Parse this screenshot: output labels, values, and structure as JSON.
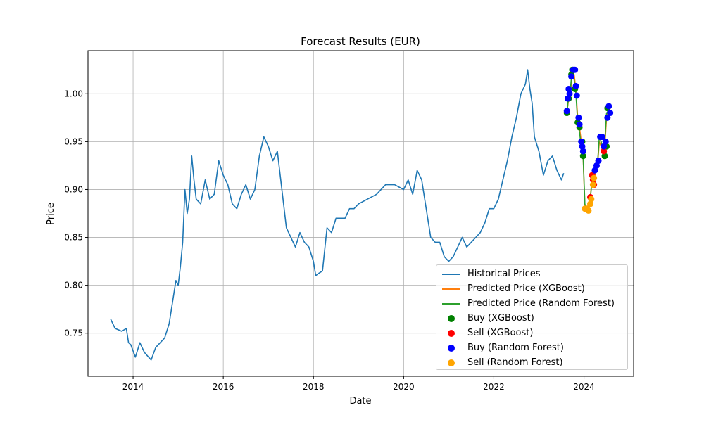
{
  "chart_data": {
    "type": "line",
    "title": "Forecast Results (EUR)",
    "xlabel": "Date",
    "ylabel": "Price",
    "xlim": [
      2013.0,
      2025.1
    ],
    "ylim": [
      0.705,
      1.045
    ],
    "x_ticks": [
      2014,
      2016,
      2018,
      2020,
      2022,
      2024
    ],
    "x_tick_labels": [
      "2014",
      "2016",
      "2018",
      "2020",
      "2022",
      "2024"
    ],
    "y_ticks": [
      0.75,
      0.8,
      0.85,
      0.9,
      0.95,
      1.0
    ],
    "y_tick_labels": [
      "0.75",
      "0.80",
      "0.85",
      "0.90",
      "0.95",
      "1.00"
    ],
    "grid": true,
    "legend_position": "lower-right",
    "series": [
      {
        "name": "Historical Prices",
        "kind": "line",
        "color": "#1f77b4",
        "x": [
          2013.5,
          2013.6,
          2013.75,
          2013.85,
          2013.9,
          2013.95,
          2014.05,
          2014.15,
          2014.25,
          2014.4,
          2014.5,
          2014.6,
          2014.7,
          2014.8,
          2014.9,
          2014.95,
          2015.0,
          2015.05,
          2015.1,
          2015.15,
          2015.2,
          2015.25,
          2015.3,
          2015.35,
          2015.4,
          2015.5,
          2015.6,
          2015.7,
          2015.8,
          2015.9,
          2016.0,
          2016.1,
          2016.2,
          2016.3,
          2016.4,
          2016.5,
          2016.6,
          2016.7,
          2016.8,
          2016.9,
          2017.0,
          2017.1,
          2017.2,
          2017.3,
          2017.4,
          2017.5,
          2017.6,
          2017.7,
          2017.8,
          2017.9,
          2018.0,
          2018.05,
          2018.1,
          2018.2,
          2018.3,
          2018.4,
          2018.5,
          2018.6,
          2018.7,
          2018.8,
          2018.9,
          2019.0,
          2019.2,
          2019.4,
          2019.6,
          2019.8,
          2020.0,
          2020.1,
          2020.2,
          2020.3,
          2020.4,
          2020.5,
          2020.6,
          2020.7,
          2020.8,
          2020.9,
          2021.0,
          2021.1,
          2021.2,
          2021.3,
          2021.4,
          2021.5,
          2021.6,
          2021.7,
          2021.8,
          2021.9,
          2022.0,
          2022.1,
          2022.2,
          2022.3,
          2022.4,
          2022.5,
          2022.6,
          2022.7,
          2022.75,
          2022.8,
          2022.85,
          2022.9,
          2023.0,
          2023.1,
          2023.2,
          2023.3,
          2023.4,
          2023.5,
          2023.55
        ],
        "y": [
          0.765,
          0.755,
          0.752,
          0.755,
          0.74,
          0.738,
          0.725,
          0.74,
          0.73,
          0.722,
          0.735,
          0.74,
          0.745,
          0.76,
          0.79,
          0.805,
          0.8,
          0.82,
          0.845,
          0.9,
          0.875,
          0.89,
          0.935,
          0.91,
          0.89,
          0.885,
          0.91,
          0.89,
          0.895,
          0.93,
          0.915,
          0.905,
          0.885,
          0.88,
          0.895,
          0.905,
          0.89,
          0.9,
          0.935,
          0.955,
          0.945,
          0.93,
          0.94,
          0.9,
          0.86,
          0.85,
          0.84,
          0.855,
          0.845,
          0.84,
          0.825,
          0.81,
          0.812,
          0.815,
          0.86,
          0.855,
          0.87,
          0.87,
          0.87,
          0.88,
          0.88,
          0.885,
          0.89,
          0.895,
          0.905,
          0.905,
          0.9,
          0.91,
          0.895,
          0.92,
          0.91,
          0.88,
          0.85,
          0.845,
          0.845,
          0.83,
          0.825,
          0.83,
          0.84,
          0.85,
          0.84,
          0.845,
          0.85,
          0.855,
          0.865,
          0.88,
          0.88,
          0.89,
          0.91,
          0.93,
          0.955,
          0.975,
          1.0,
          1.01,
          1.025,
          1.005,
          0.99,
          0.955,
          0.94,
          0.915,
          0.93,
          0.935,
          0.92,
          0.91,
          0.917
        ]
      },
      {
        "name": "Predicted Price (XGBoost)",
        "kind": "line",
        "color": "#ff7f0e",
        "x": [
          2023.62,
          2023.66,
          2023.7,
          2023.74,
          2023.78,
          2023.82,
          2023.86,
          2023.9,
          2023.94,
          2023.98,
          2024.02,
          2024.06,
          2024.1,
          2024.14,
          2024.18,
          2024.22,
          2024.26,
          2024.3,
          2024.34,
          2024.38,
          2024.42,
          2024.46,
          2024.5,
          2024.54,
          2024.58
        ],
        "y": [
          0.98,
          0.995,
          1.0,
          1.025,
          1.02,
          1.005,
          0.975,
          0.965,
          0.95,
          0.935,
          0.88,
          0.88,
          0.885,
          0.892,
          0.912,
          0.905,
          0.92,
          0.925,
          0.95,
          0.945,
          0.94,
          0.945,
          0.975,
          0.985,
          0.98
        ]
      },
      {
        "name": "Predicted Price (Random Forest)",
        "kind": "line",
        "color": "#2ca02c",
        "x": [
          2023.62,
          2023.66,
          2023.7,
          2023.74,
          2023.78,
          2023.82,
          2023.86,
          2023.9,
          2023.94,
          2023.98,
          2024.02,
          2024.06,
          2024.1,
          2024.14,
          2024.18,
          2024.22,
          2024.26,
          2024.3,
          2024.34,
          2024.38,
          2024.42,
          2024.46,
          2024.5,
          2024.54,
          2024.58
        ],
        "y": [
          0.978,
          1.0,
          1.005,
          1.027,
          1.015,
          1.0,
          0.97,
          0.96,
          0.945,
          0.935,
          0.885,
          0.878,
          0.882,
          0.89,
          0.91,
          0.915,
          0.925,
          0.928,
          0.955,
          0.95,
          0.94,
          0.95,
          0.98,
          0.982,
          0.98
        ]
      },
      {
        "name": "Buy (XGBoost)",
        "kind": "scatter",
        "color": "#008000",
        "x": [
          2023.62,
          2023.66,
          2023.72,
          2023.74,
          2023.8,
          2023.86,
          2023.9,
          2023.96,
          2023.98,
          2024.38,
          2024.46,
          2024.5,
          2024.52
        ],
        "y": [
          0.98,
          0.995,
          1.02,
          1.025,
          1.005,
          0.97,
          0.965,
          0.95,
          0.935,
          0.955,
          0.935,
          0.945,
          0.985
        ]
      },
      {
        "name": "Sell (XGBoost)",
        "kind": "scatter",
        "color": "#ff0000",
        "x": [
          2024.14,
          2024.18,
          2024.2,
          2024.22,
          2024.44
        ],
        "y": [
          0.892,
          0.915,
          0.91,
          0.905,
          0.94
        ]
      },
      {
        "name": "Buy (Random Forest)",
        "kind": "scatter",
        "color": "#0000ff",
        "x": [
          2023.62,
          2023.64,
          2023.66,
          2023.68,
          2023.72,
          2023.76,
          2023.8,
          2023.82,
          2023.84,
          2023.88,
          2023.9,
          2023.94,
          2023.96,
          2023.98,
          2024.24,
          2024.28,
          2024.32,
          2024.36,
          2024.4,
          2024.44,
          2024.48,
          2024.52,
          2024.55,
          2024.58
        ],
        "y": [
          0.982,
          0.995,
          1.005,
          1.0,
          1.018,
          1.025,
          1.025,
          1.008,
          0.998,
          0.975,
          0.968,
          0.95,
          0.945,
          0.94,
          0.92,
          0.925,
          0.93,
          0.955,
          0.955,
          0.945,
          0.95,
          0.975,
          0.987,
          0.98
        ]
      },
      {
        "name": "Sell (Random Forest)",
        "kind": "scatter",
        "color": "#ffa500",
        "x": [
          2024.02,
          2024.06,
          2024.1,
          2024.14,
          2024.16,
          2024.2,
          2024.22
        ],
        "y": [
          0.88,
          0.88,
          0.878,
          0.885,
          0.89,
          0.905,
          0.912
        ]
      }
    ]
  }
}
